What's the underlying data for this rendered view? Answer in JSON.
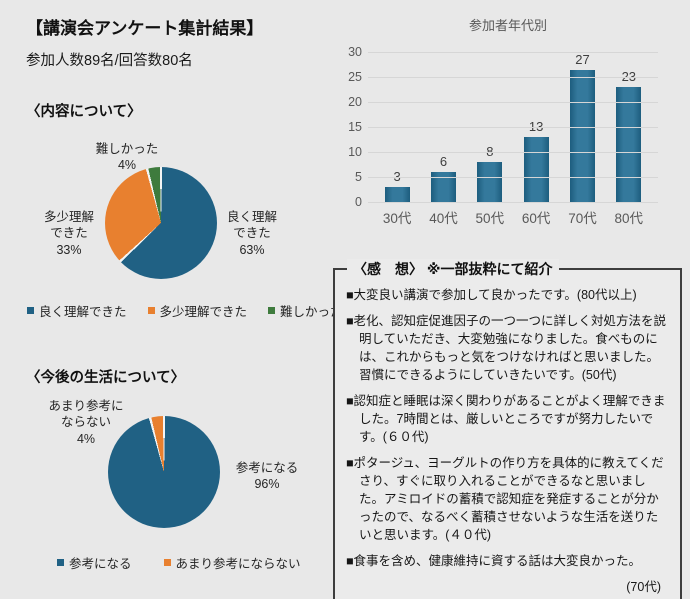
{
  "page": {
    "background": "#e8e8e8"
  },
  "header": {
    "title": "【講演会アンケート集計結果】",
    "participants": "参加人数89名/回答数80名"
  },
  "sections": {
    "content": {
      "heading": "〈内容について〉"
    },
    "life": {
      "heading": "〈今後の生活について〉"
    }
  },
  "chart_data": [
    {
      "type": "pie",
      "title": "内容について",
      "labels": [
        "良く理解できた",
        "多少理解できた",
        "難しかった"
      ],
      "values": [
        63,
        33,
        4
      ],
      "unit": "%",
      "colors": [
        "#206184",
        "#e8802f",
        "#3e7b3d"
      ],
      "start": "top",
      "direction": "clockwise",
      "slice_labels": {
        "good": "良く理解\nできた\n63%",
        "some": "多少理解\nできた\n33%",
        "hard": "難しかった\n4%"
      },
      "legend": [
        "良く理解できた",
        "多少理解できた",
        "難しかった"
      ],
      "legend_position": "bottom"
    },
    {
      "type": "bar",
      "title": "参加者年代別",
      "categories": [
        "30代",
        "40代",
        "50代",
        "60代",
        "70代",
        "80代"
      ],
      "values": [
        3,
        6,
        8,
        13,
        27,
        23
      ],
      "ylim": [
        0,
        30
      ],
      "yticks": [
        0,
        5,
        10,
        15,
        20,
        25,
        30
      ],
      "grid": true,
      "data_labels": true,
      "bar_color": "#2b6f91"
    },
    {
      "type": "pie",
      "title": "今後の生活について",
      "labels": [
        "参考になる",
        "あまり参考にならない"
      ],
      "values": [
        96,
        4
      ],
      "unit": "%",
      "colors": [
        "#206184",
        "#e8802f"
      ],
      "start": "top",
      "direction": "clockwise",
      "slice_labels": {
        "useful": "参考になる\n96%",
        "not_useful": "あまり参考に\nならない\n4%"
      },
      "legend": [
        "参考になる",
        "あまり参考にならない"
      ],
      "legend_position": "bottom"
    }
  ],
  "feedback": {
    "heading": "〈感　想〉 ※一部抜粋にて紹介",
    "comments": [
      {
        "text": "■大変良い講演で参加して良かったです。(80代以上)"
      },
      {
        "text": "■老化、認知症促進因子の一つ一つに詳しく対処方法を説明していただき、大変勉強になりました。食べものには、これからもっと気をつけなければと思いました。習慣にできるようにしていきたいです。(50代)"
      },
      {
        "text": "■認知症と睡眠は深く関わりがあることがよく理解できました。7時間とは、厳しいところですが努力したいです。(６０代)"
      },
      {
        "text": "■ポタージュ、ヨーグルトの作り方を具体的に教えてくださり、すぐに取り入れることができるなと思いました。アミロイドの蓄積で認知症を発症することが分かったので、なるべく蓄積させないような生活を送りたいと思います。(４０代)"
      },
      {
        "text": "■食事を含め、健康維持に資する話は大変良かった。",
        "tail": "(70代)"
      }
    ]
  }
}
